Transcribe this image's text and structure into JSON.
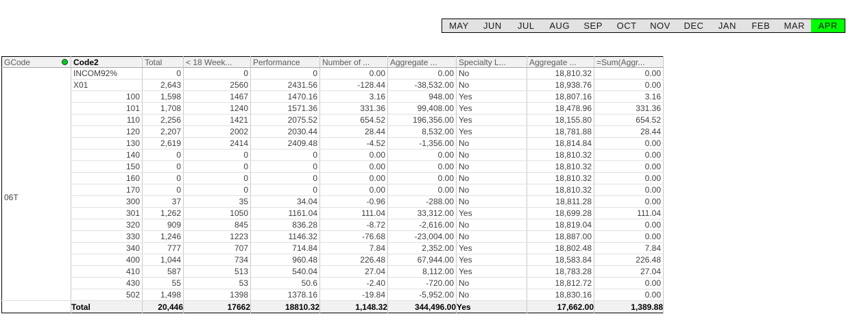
{
  "month_bar": {
    "months": [
      "MAY",
      "JUN",
      "JUL",
      "AUG",
      "SEP",
      "OCT",
      "NOV",
      "DEC",
      "JAN",
      "FEB",
      "MAR",
      "APR"
    ],
    "selected": "APR",
    "selected_color": "#00ff00"
  },
  "table": {
    "gcode_header": "GCode",
    "gcode_indicator": "green-led-dot",
    "gcode_indicator_color": "#00cc22",
    "gcode_value": "06T",
    "columns": [
      "Code2",
      "Total",
      "< 18 Week...",
      "Performance",
      "Number of ...",
      "Aggregate ...",
      "Specialty L...",
      "Aggregate ...",
      "=Sum(Aggr..."
    ],
    "rows": [
      {
        "code2": "INCOM92%",
        "align": "left",
        "cells": [
          "0",
          "0",
          "0",
          "0.00",
          "0.00",
          "No",
          "18,810.32",
          "0.00"
        ]
      },
      {
        "code2": "X01",
        "align": "left",
        "cells": [
          "2,643",
          "2560",
          "2431.56",
          "-128.44",
          "-38,532.00",
          "No",
          "18,938.76",
          "0.00"
        ]
      },
      {
        "code2": "100",
        "align": "right",
        "cells": [
          "1,598",
          "1467",
          "1470.16",
          "3.16",
          "948.00",
          "Yes",
          "18,807.16",
          "3.16"
        ]
      },
      {
        "code2": "101",
        "align": "right",
        "cells": [
          "1,708",
          "1240",
          "1571.36",
          "331.36",
          "99,408.00",
          "Yes",
          "18,478.96",
          "331.36"
        ]
      },
      {
        "code2": "110",
        "align": "right",
        "cells": [
          "2,256",
          "1421",
          "2075.52",
          "654.52",
          "196,356.00",
          "Yes",
          "18,155.80",
          "654.52"
        ]
      },
      {
        "code2": "120",
        "align": "right",
        "cells": [
          "2,207",
          "2002",
          "2030.44",
          "28.44",
          "8,532.00",
          "Yes",
          "18,781.88",
          "28.44"
        ]
      },
      {
        "code2": "130",
        "align": "right",
        "cells": [
          "2,619",
          "2414",
          "2409.48",
          "-4.52",
          "-1,356.00",
          "No",
          "18,814.84",
          "0.00"
        ]
      },
      {
        "code2": "140",
        "align": "right",
        "cells": [
          "0",
          "0",
          "0",
          "0.00",
          "0.00",
          "No",
          "18,810.32",
          "0.00"
        ]
      },
      {
        "code2": "150",
        "align": "right",
        "cells": [
          "0",
          "0",
          "0",
          "0.00",
          "0.00",
          "No",
          "18,810.32",
          "0.00"
        ]
      },
      {
        "code2": "160",
        "align": "right",
        "cells": [
          "0",
          "0",
          "0",
          "0.00",
          "0.00",
          "No",
          "18,810.32",
          "0.00"
        ]
      },
      {
        "code2": "170",
        "align": "right",
        "cells": [
          "0",
          "0",
          "0",
          "0.00",
          "0.00",
          "No",
          "18,810.32",
          "0.00"
        ]
      },
      {
        "code2": "300",
        "align": "right",
        "cells": [
          "37",
          "35",
          "34.04",
          "-0.96",
          "-288.00",
          "No",
          "18,811.28",
          "0.00"
        ]
      },
      {
        "code2": "301",
        "align": "right",
        "cells": [
          "1,262",
          "1050",
          "1161.04",
          "111.04",
          "33,312.00",
          "Yes",
          "18,699.28",
          "111.04"
        ]
      },
      {
        "code2": "320",
        "align": "right",
        "cells": [
          "909",
          "845",
          "836.28",
          "-8.72",
          "-2,616.00",
          "No",
          "18,819.04",
          "0.00"
        ]
      },
      {
        "code2": "330",
        "align": "right",
        "cells": [
          "1,246",
          "1223",
          "1146.32",
          "-76.68",
          "-23,004.00",
          "No",
          "18,887.00",
          "0.00"
        ]
      },
      {
        "code2": "340",
        "align": "right",
        "cells": [
          "777",
          "707",
          "714.84",
          "7.84",
          "2,352.00",
          "Yes",
          "18,802.48",
          "7.84"
        ]
      },
      {
        "code2": "400",
        "align": "right",
        "cells": [
          "1,044",
          "734",
          "960.48",
          "226.48",
          "67,944.00",
          "Yes",
          "18,583.84",
          "226.48"
        ]
      },
      {
        "code2": "410",
        "align": "right",
        "cells": [
          "587",
          "513",
          "540.04",
          "27.04",
          "8,112.00",
          "Yes",
          "18,783.28",
          "27.04"
        ]
      },
      {
        "code2": "430",
        "align": "right",
        "cells": [
          "55",
          "53",
          "50.6",
          "-2.40",
          "-720.00",
          "No",
          "18,812.72",
          "0.00"
        ]
      },
      {
        "code2": "502",
        "align": "right",
        "cells": [
          "1,498",
          "1398",
          "1378.16",
          "-19.84",
          "-5,952.00",
          "No",
          "18,830.16",
          "0.00"
        ]
      }
    ],
    "total_row": {
      "label": "Total",
      "cells": [
        "20,446",
        "17662",
        "18810.32",
        "1,148.32",
        "344,496.00",
        "Yes",
        "17,662.00",
        "1,389.88"
      ]
    }
  }
}
